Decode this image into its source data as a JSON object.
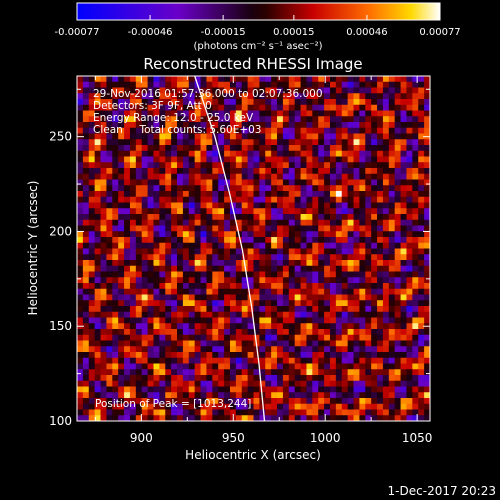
{
  "chart_data": {
    "type": "heatmap",
    "title": "Reconstructed RHESSI Image",
    "xlabel": "Heliocentric X (arcsec)",
    "ylabel": "Heliocentric Y (arcsec)",
    "xlim": [
      865,
      1057
    ],
    "ylim": [
      100,
      282
    ],
    "xticks": [
      900,
      950,
      1000,
      1050
    ],
    "yticks": [
      100,
      150,
      200,
      250
    ],
    "colormap": "black-red-orange-yellow-white with blue/purple negatives",
    "colorbar": {
      "label": "(photons cm⁻² s⁻¹ asec⁻²)",
      "range": [
        -0.00077,
        0.00077
      ],
      "ticks": [
        "-0.00077",
        "-0.00046",
        "-0.00015",
        "0.00015",
        "0.00046",
        "0.00077"
      ],
      "tick_values": [
        -0.00077,
        -0.00046,
        -0.00015,
        0.00015,
        0.00046,
        0.00077
      ]
    },
    "annotations": [
      "29-Nov-2016 01:57:36.000 to 02:07:36.000",
      "Detectors: 3F 9F, Att 0",
      "Energy Range: 12.0 - 25.0 keV",
      "Clean     Total counts: 5.60E+03"
    ],
    "peak_label": "Position of Peak = [1013,244]",
    "peak_position": [
      1013,
      244
    ],
    "limb_curve": [
      [
        929,
        282
      ],
      [
        940,
        250
      ],
      [
        948,
        220
      ],
      [
        955,
        190
      ],
      [
        960,
        160
      ],
      [
        964,
        130
      ],
      [
        967,
        100
      ]
    ],
    "timestamp": "1-Dec-2017 20:23"
  }
}
